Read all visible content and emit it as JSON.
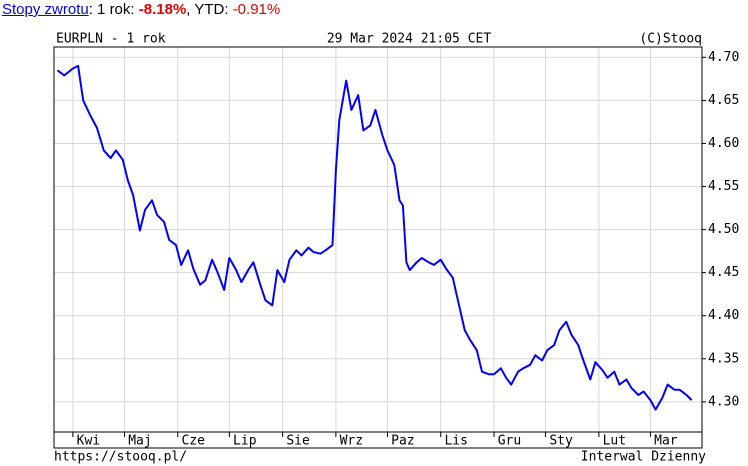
{
  "header": {
    "link": "Stopy zwrotu",
    "parts": [
      ": 1 rok: ",
      "-8.18%",
      ", YTD: ",
      "-0.91%"
    ]
  },
  "chart_data": {
    "type": "line",
    "title": "EURPLN - 1 rok",
    "subtitle": "29 Mar 2024 21:05 CET",
    "copyright": "(C)Stooq",
    "source": "https://stooq.pl/",
    "interval": "Interwal Dzienny",
    "x": [
      -9,
      -5,
      0,
      3,
      6,
      10,
      14,
      18,
      22,
      25,
      29,
      32,
      35,
      39,
      42,
      46,
      49,
      53,
      56,
      60,
      63,
      67,
      70,
      74,
      77,
      81,
      84,
      88,
      91,
      95,
      98,
      102,
      105,
      109,
      112,
      116,
      119,
      123,
      126,
      130,
      133,
      137,
      140,
      144,
      147,
      151,
      153,
      155,
      159,
      162,
      166,
      169,
      173,
      176,
      180,
      183,
      187,
      190,
      192,
      194,
      196,
      200,
      203,
      207,
      210,
      214,
      217,
      221,
      224,
      228,
      231,
      235,
      238,
      242,
      245,
      249,
      252,
      255,
      259,
      262,
      266,
      269,
      273,
      276,
      280,
      283,
      287,
      290,
      294,
      297,
      301,
      304,
      308,
      311,
      315,
      318,
      322,
      325,
      329,
      332,
      336,
      339,
      343,
      346,
      350,
      353,
      357,
      360
    ],
    "series": [
      {
        "name": "EURPLN",
        "color": "#0000ff",
        "values": [
          4.685,
          4.679,
          4.687,
          4.69,
          4.65,
          4.633,
          4.618,
          4.592,
          4.583,
          4.592,
          4.581,
          4.557,
          4.54,
          4.499,
          4.523,
          4.534,
          4.517,
          4.509,
          4.488,
          4.482,
          4.459,
          4.476,
          4.455,
          4.436,
          4.441,
          4.465,
          4.451,
          4.43,
          4.467,
          4.453,
          4.439,
          4.453,
          4.462,
          4.436,
          4.418,
          4.412,
          4.453,
          4.439,
          4.465,
          4.476,
          4.47,
          4.479,
          4.474,
          4.472,
          4.476,
          4.482,
          4.569,
          4.627,
          4.673,
          4.639,
          4.656,
          4.615,
          4.621,
          4.639,
          4.61,
          4.592,
          4.575,
          4.534,
          4.528,
          4.462,
          4.453,
          4.462,
          4.467,
          4.462,
          4.459,
          4.465,
          4.455,
          4.444,
          4.418,
          4.383,
          4.372,
          4.36,
          4.335,
          4.332,
          4.332,
          4.339,
          4.328,
          4.32,
          4.335,
          4.339,
          4.343,
          4.354,
          4.348,
          4.36,
          4.366,
          4.383,
          4.393,
          4.378,
          4.366,
          4.348,
          4.326,
          4.346,
          4.337,
          4.328,
          4.335,
          4.32,
          4.326,
          4.316,
          4.308,
          4.312,
          4.302,
          4.291,
          4.305,
          4.32,
          4.314,
          4.314,
          4.308,
          4.302
        ]
      }
    ],
    "xlim": [
      -11,
      366
    ],
    "xticks": [
      {
        "value": 9,
        "label": "Kwi"
      },
      {
        "value": 39,
        "label": "Maj"
      },
      {
        "value": 70,
        "label": "Cze"
      },
      {
        "value": 100,
        "label": "Lip"
      },
      {
        "value": 131,
        "label": "Sie"
      },
      {
        "value": 162,
        "label": "Wrz"
      },
      {
        "value": 192,
        "label": "Paz"
      },
      {
        "value": 223,
        "label": "Lis"
      },
      {
        "value": 254,
        "label": "Gru"
      },
      {
        "value": 284,
        "label": "Sty"
      },
      {
        "value": 315,
        "label": "Lut"
      },
      {
        "value": 345,
        "label": "Mar"
      }
    ],
    "xgrid": [
      0,
      30,
      61,
      91,
      122,
      153,
      183,
      214,
      245,
      275,
      306,
      336
    ],
    "ylim": [
      4.265,
      4.712
    ],
    "yticks": [
      {
        "value": 4.3,
        "label": "4.30"
      },
      4.35,
      {
        "value": 4.4,
        "label": "4.40"
      },
      4.45,
      {
        "value": 4.5,
        "label": "4.50"
      },
      4.55,
      {
        "value": 4.6,
        "label": "4.60"
      },
      4.65,
      {
        "value": 4.7,
        "label": "4.70"
      }
    ],
    "grid": true
  }
}
